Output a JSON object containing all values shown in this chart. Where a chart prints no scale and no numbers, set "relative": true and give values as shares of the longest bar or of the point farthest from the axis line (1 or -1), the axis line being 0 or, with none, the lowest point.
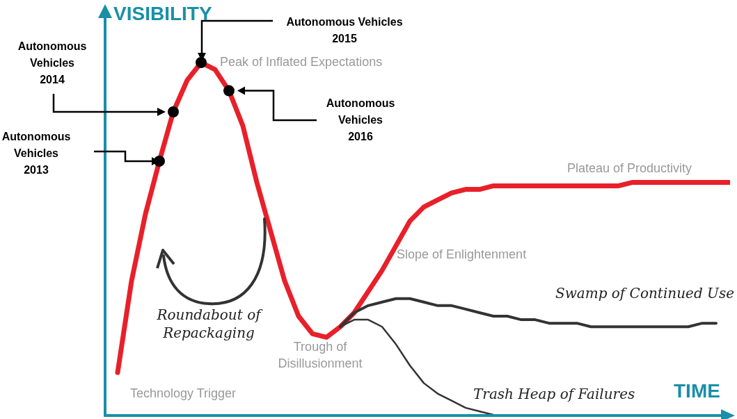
{
  "chart_data": {
    "type": "line",
    "relative": true,
    "xlabel": "TIME",
    "ylabel": "VISIBILITY",
    "categories": [
      null,
      null,
      null,
      null,
      null,
      null,
      null,
      null,
      null,
      null,
      null,
      null,
      null,
      null,
      null,
      null,
      null,
      null,
      null,
      null,
      null,
      null,
      null,
      null,
      null,
      null,
      null,
      null,
      null,
      null,
      null,
      null,
      null,
      null,
      null,
      null,
      null,
      null,
      null,
      null,
      null,
      null,
      null,
      null,
      null,
      null
    ],
    "series": [
      {
        "color": "#e8202a",
        "values": [
          null,
          0.12,
          0.38,
          0.57,
          0.72,
          0.86,
          0.95,
          1,
          0.98,
          0.92,
          0.82,
          0.66,
          0.52,
          0.38,
          0.28,
          0.23,
          0.22,
          0.25,
          0.29,
          0.35,
          0.41,
          0.48,
          0.55,
          0.59,
          0.61,
          0.63,
          0.64,
          0.64,
          0.65,
          0.65,
          0.65,
          0.65,
          0.65,
          0.65,
          0.65,
          0.65,
          0.65,
          0.65,
          0.66,
          0.66,
          0.66,
          0.66,
          0.66,
          0.66,
          0.66,
          0.66
        ]
      },
      {
        "name": "Swamp of Continued Use",
        "color": "#333333",
        "values": [
          null,
          null,
          null,
          null,
          null,
          null,
          null,
          null,
          null,
          null,
          null,
          null,
          null,
          null,
          null,
          null,
          null,
          0.25,
          0.29,
          0.31,
          0.32,
          0.33,
          0.33,
          0.32,
          0.31,
          0.31,
          0.3,
          0.29,
          0.28,
          0.28,
          0.27,
          0.27,
          0.26,
          0.26,
          0.26,
          0.25,
          0.25,
          0.25,
          0.25,
          0.25,
          0.25,
          0.25,
          0.25,
          0.26,
          0.26,
          null
        ]
      },
      {
        "name": "Trash Heap of Failures",
        "color": "#333333",
        "values": [
          null,
          null,
          null,
          null,
          null,
          null,
          null,
          null,
          null,
          null,
          null,
          null,
          null,
          null,
          null,
          null,
          null,
          0.25,
          0.27,
          0.27,
          0.25,
          0.2,
          0.14,
          0.09,
          0.06,
          0.04,
          0.02,
          0.01,
          0,
          null,
          null,
          null,
          null,
          null,
          null,
          null,
          null,
          null,
          null,
          null,
          null,
          null,
          null,
          null,
          null,
          null
        ]
      }
    ],
    "annotations": [
      "Peak of Inflated Expectations",
      "Technology Trigger",
      "Roundabout of Repackaging",
      "Trough of Disillusionment",
      "Slope of Enlightenment",
      "Plateau of Productivity",
      {
        "text": "Autonomous Vehicles 2013"
      },
      {
        "text": "Autonomous Vehicles 2014"
      },
      {
        "text": "Autonomous Vehicles 2015"
      },
      {
        "text": "Autonomous Vehicles 2016"
      }
    ]
  }
}
